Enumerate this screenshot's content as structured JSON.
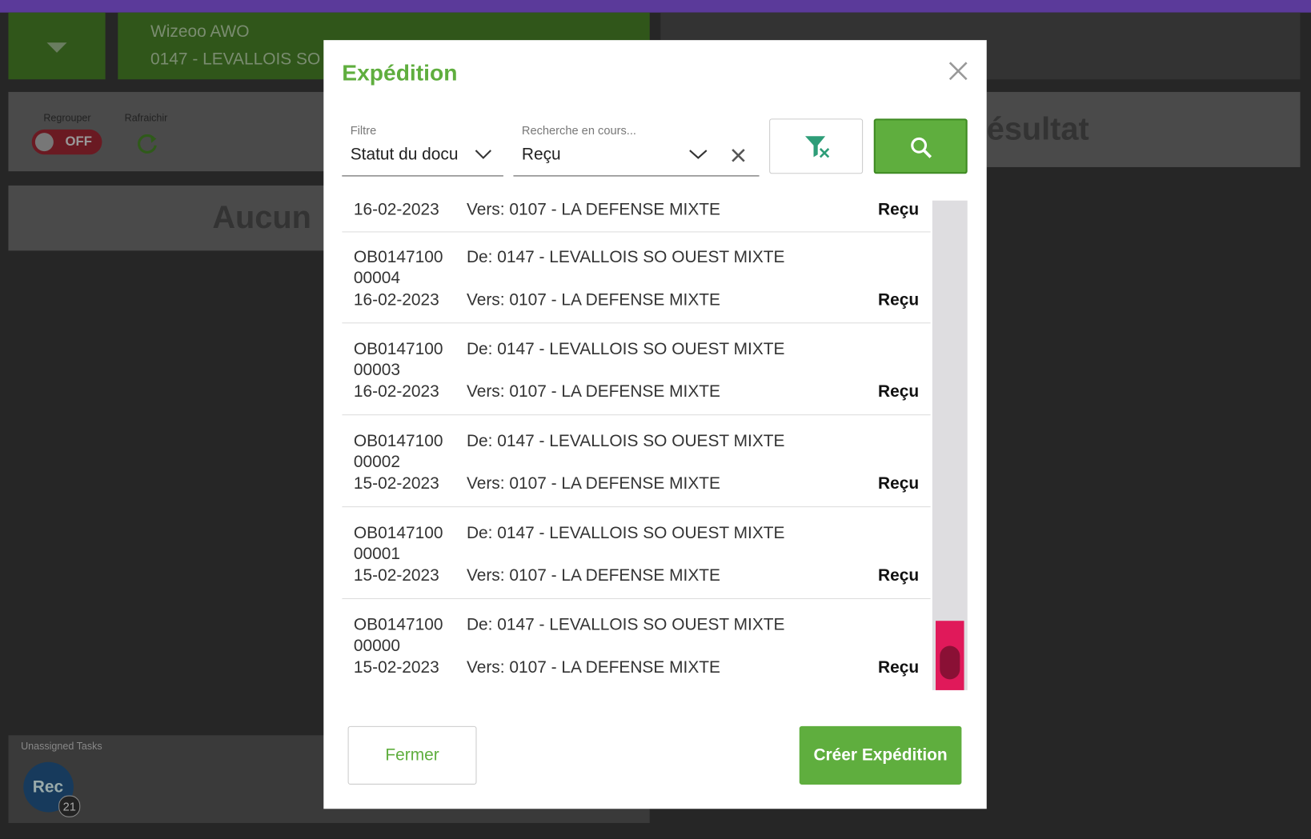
{
  "background": {
    "user": "Wizeoo AWO",
    "store": "0147 - LEVALLOIS SO",
    "group_label": "Regrouper",
    "toggle_state": "OFF",
    "refresh_label": "Rafraichir",
    "empty_text": "Aucun",
    "result_text": "ésultat",
    "tasks_label": "Unassigned Tasks",
    "avatar": "Rec",
    "task_count": "21"
  },
  "modal": {
    "title": "Expédition",
    "filter": {
      "label": "Filtre",
      "value": "Statut du docu"
    },
    "search": {
      "label": "Recherche en cours...",
      "value": "Reçu"
    },
    "partial_row": {
      "date": "16-02-2023",
      "to": "Vers: 0107 - LA DEFENSE MIXTE",
      "status": "Reçu"
    },
    "rows": [
      {
        "id_top": "OB0147100",
        "id_bottom": "00004",
        "date": "16-02-2023",
        "from": "De: 0147 - LEVALLOIS SO OUEST MIXTE",
        "to": "Vers: 0107 - LA DEFENSE MIXTE",
        "status": "Reçu"
      },
      {
        "id_top": "OB0147100",
        "id_bottom": "00003",
        "date": "16-02-2023",
        "from": "De: 0147 - LEVALLOIS SO OUEST MIXTE",
        "to": "Vers: 0107 - LA DEFENSE MIXTE",
        "status": "Reçu"
      },
      {
        "id_top": "OB0147100",
        "id_bottom": "00002",
        "date": "15-02-2023",
        "from": "De: 0147 - LEVALLOIS SO OUEST MIXTE",
        "to": "Vers: 0107 - LA DEFENSE MIXTE",
        "status": "Reçu"
      },
      {
        "id_top": "OB0147100",
        "id_bottom": "00001",
        "date": "15-02-2023",
        "from": "De: 0147 - LEVALLOIS SO OUEST MIXTE",
        "to": "Vers: 0107 - LA DEFENSE MIXTE",
        "status": "Reçu"
      },
      {
        "id_top": "OB0147100",
        "id_bottom": "00000",
        "date": "15-02-2023",
        "from": "De: 0147 - LEVALLOIS SO OUEST MIXTE",
        "to": "Vers: 0107 - LA DEFENSE MIXTE",
        "status": "Reçu"
      }
    ],
    "buttons": {
      "close": "Fermer",
      "create": "Créer Expédition"
    }
  }
}
